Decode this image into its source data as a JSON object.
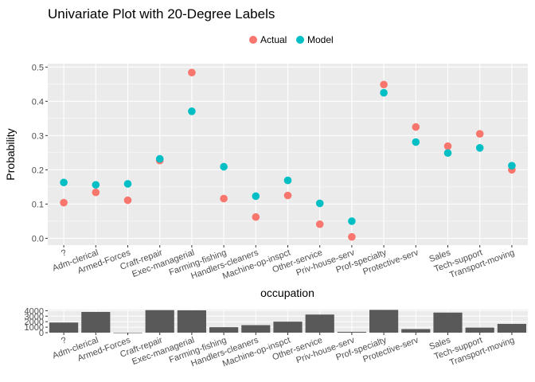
{
  "chart_data": [
    {
      "type": "scatter",
      "title": "Univariate Plot with 20-Degree Labels",
      "xlabel": "occupation",
      "ylabel": "Probability",
      "ylim": [
        -0.02,
        0.51
      ],
      "y_ticks": [
        "0.0",
        "0.1",
        "0.2",
        "0.3",
        "0.4",
        "0.5"
      ],
      "categories": [
        "?",
        "Adm-clerical",
        "Armed-Forces",
        "Craft-repair",
        "Exec-managerial",
        "Farming-fishing",
        "Handlers-cleaners",
        "Machine-op-inspct",
        "Other-service",
        "Priv-house-serv",
        "Prof-specialty",
        "Protective-serv",
        "Sales",
        "Tech-support",
        "Transport-moving"
      ],
      "tick_angle_degrees": 20,
      "grid": true,
      "legend_position": "top",
      "series": [
        {
          "name": "Actual",
          "color": "#F8766D",
          "values": [
            0.104,
            0.134,
            0.111,
            0.227,
            0.484,
            0.116,
            0.062,
            0.125,
            0.041,
            0.004,
            0.449,
            0.325,
            0.269,
            0.305,
            0.2
          ]
        },
        {
          "name": "Model",
          "color": "#00BFC4",
          "values": [
            0.163,
            0.156,
            0.159,
            0.232,
            0.371,
            0.209,
            0.123,
            0.169,
            0.102,
            0.05,
            0.425,
            0.281,
            0.249,
            0.264,
            0.212
          ]
        }
      ]
    },
    {
      "type": "bar",
      "xlabel": "",
      "ylabel": "",
      "ylim": [
        0,
        4200
      ],
      "y_ticks": [
        "0",
        "1000",
        "2000",
        "3000",
        "4000"
      ],
      "categories": [
        "?",
        "Adm-clerical",
        "Armed-Forces",
        "Craft-repair",
        "Exec-managerial",
        "Farming-fishing",
        "Handlers-cleaners",
        "Machine-op-inspct",
        "Other-service",
        "Priv-house-serv",
        "Prof-specialty",
        "Protective-serv",
        "Sales",
        "Tech-support",
        "Transport-moving"
      ],
      "tick_angle_degrees": 20,
      "grid": true,
      "color": "#595959",
      "values": [
        1843,
        3770,
        9,
        4099,
        4066,
        994,
        1370,
        2002,
        3295,
        149,
        4140,
        649,
        3650,
        928,
        1597
      ]
    }
  ]
}
